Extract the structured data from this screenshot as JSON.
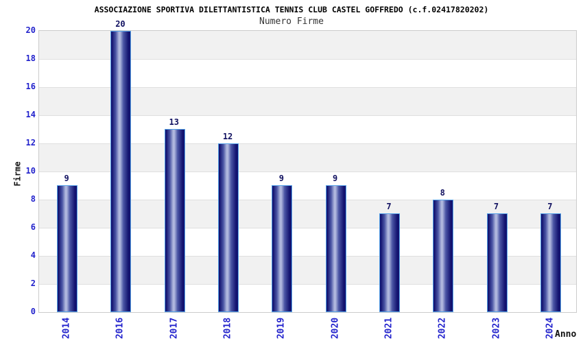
{
  "chart_data": {
    "type": "bar",
    "title": "ASSOCIAZIONE SPORTIVA DILETTANTISTICA TENNIS CLUB CASTEL GOFFREDO (c.f.02417820202)",
    "subtitle": "Numero Firme",
    "xlabel": "Anno",
    "ylabel": "Firme",
    "categories": [
      "2014",
      "2016",
      "2017",
      "2018",
      "2019",
      "2020",
      "2021",
      "2022",
      "2023",
      "2024"
    ],
    "values": [
      9,
      20,
      13,
      12,
      9,
      9,
      7,
      8,
      7,
      7
    ],
    "ylim": [
      0,
      20
    ],
    "ytick_step": 2,
    "yticks": [
      0,
      2,
      4,
      6,
      8,
      10,
      12,
      14,
      16,
      18,
      20
    ],
    "grid": "horizontal-bands",
    "legend": "none",
    "colors": {
      "tick_label": "#2222cc",
      "value_label": "#101060",
      "axis_title": "#111111",
      "title": "#000000",
      "subtitle": "#333333",
      "band_gray": "#f1f1f1",
      "band_white": "#ffffff",
      "gridline": "#dfdfdf",
      "plot_border": "#cbcbcb",
      "bar_border": "#54a1e8",
      "bar_dark": "#131370",
      "bar_mid": "#4b56a5",
      "bar_light": "#b0b8de"
    }
  }
}
